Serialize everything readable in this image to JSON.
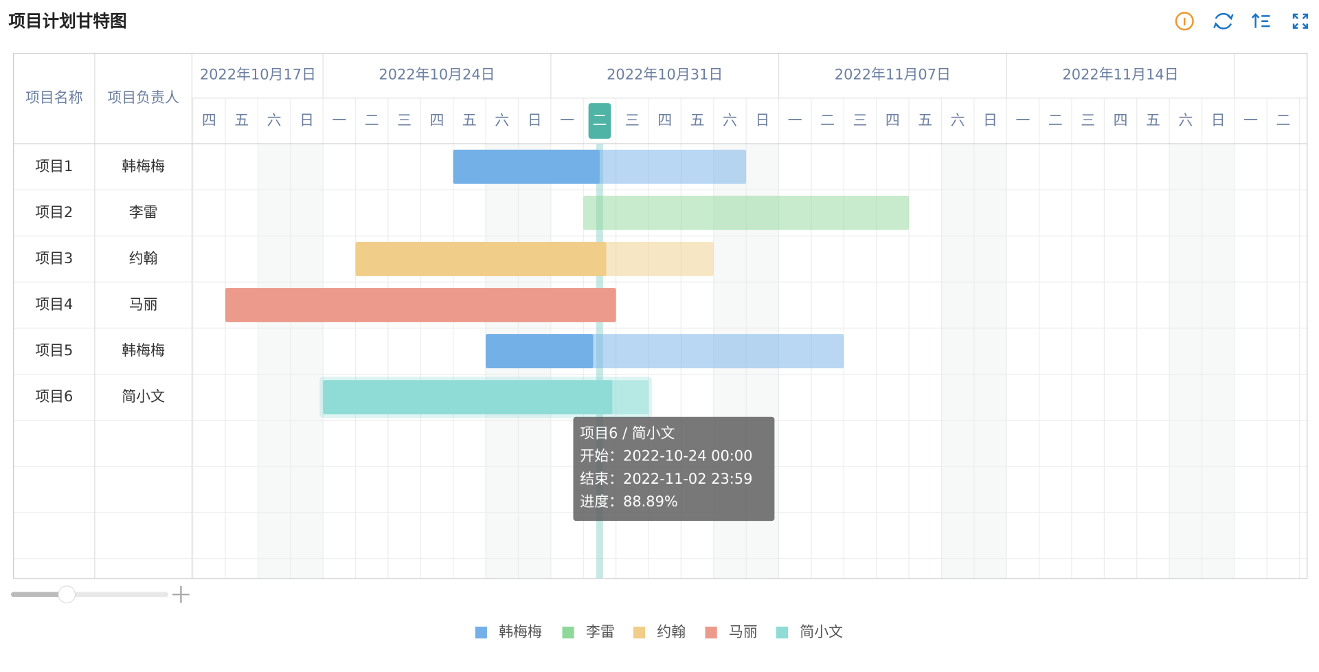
{
  "chart_data": {
    "type": "gantt",
    "title": "项目计划甘特图",
    "column_headers": [
      "项目名称",
      "项目负责人"
    ],
    "xlim": [
      "2022-10-20",
      "2022-11-23"
    ],
    "weeks": [
      {
        "value": "2022-10-17",
        "label": "2022年10月17日"
      },
      {
        "value": "2022-10-24",
        "label": "2022年10月24日"
      },
      {
        "value": "2022-10-31",
        "label": "2022年10月31日"
      },
      {
        "value": "2022-11-07",
        "label": "2022年11月07日"
      },
      {
        "value": "2022-11-14",
        "label": "2022年11月14日"
      }
    ],
    "weekday_names": [
      "日",
      "一",
      "二",
      "三",
      "四",
      "五",
      "六"
    ],
    "today": "2022-11-01",
    "series": [
      {
        "name": "韩梅梅",
        "color": "#74b0e8"
      },
      {
        "name": "李雷",
        "color": "#90d89a"
      },
      {
        "name": "约翰",
        "color": "#f0cd88"
      },
      {
        "name": "马丽",
        "color": "#ec9a8b"
      },
      {
        "name": "简小文",
        "color": "#8fdcd6"
      }
    ],
    "tasks": [
      {
        "name": "项目1",
        "owner": "韩梅梅",
        "start": "2022-10-28 00:00",
        "end": "2022-11-05 23:59",
        "progress": 50
      },
      {
        "name": "项目2",
        "owner": "李雷",
        "start": "2022-11-01 00:00",
        "end": "2022-11-10 23:59",
        "progress": 0
      },
      {
        "name": "项目3",
        "owner": "约翰",
        "start": "2022-10-25 00:00",
        "end": "2022-11-04 23:59",
        "progress": 70
      },
      {
        "name": "项目4",
        "owner": "马丽",
        "start": "2022-10-21 00:00",
        "end": "2022-11-01 23:59",
        "progress": 100
      },
      {
        "name": "项目5",
        "owner": "韩梅梅",
        "start": "2022-10-29 00:00",
        "end": "2022-11-08 23:59",
        "progress": 30
      },
      {
        "name": "项目6",
        "owner": "简小文",
        "start": "2022-10-24 00:00",
        "end": "2022-11-02 23:59",
        "progress": 88.89,
        "value_label": "88.89%"
      }
    ],
    "tooltip": {
      "title": "项目6 / 简小文",
      "start_label": "开始：",
      "end_label": "结束：",
      "progress_label": "进度："
    }
  }
}
